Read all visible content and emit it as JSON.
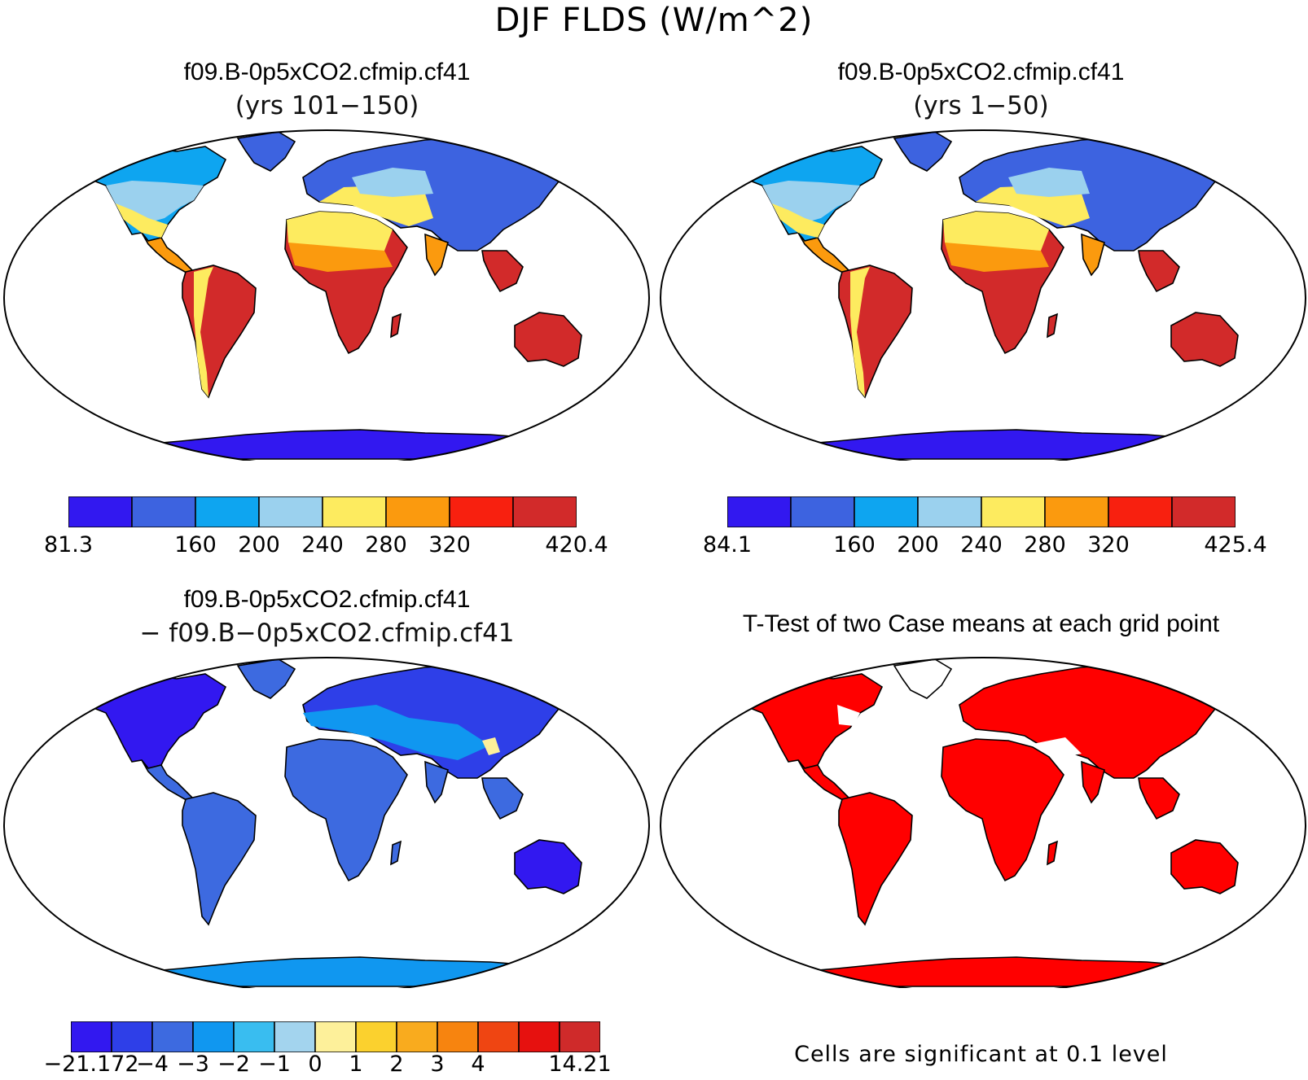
{
  "figure_title": "DJF FLDS (W/m^2)",
  "chart_data": [
    {
      "type": "heatmap",
      "title": "f09.B-0p5xCO2.cfmip.cf41",
      "subtitle": "(yrs 101−150)",
      "colorbar": {
        "colors": [
          "#3218f0",
          "#3d63e0",
          "#0ea5f0",
          "#9bd1ee",
          "#fdeb5f",
          "#fb9a0e",
          "#f8200f",
          "#d22a2a"
        ],
        "labels": [
          "81.3",
          "",
          "160",
          "200",
          "240",
          "280",
          "320",
          "",
          "420.4"
        ]
      }
    },
    {
      "type": "heatmap",
      "title": "f09.B-0p5xCO2.cfmip.cf41",
      "subtitle": "(yrs 1−50)",
      "colorbar": {
        "colors": [
          "#3218f0",
          "#3d63e0",
          "#0ea5f0",
          "#9bd1ee",
          "#fdeb5f",
          "#fb9a0e",
          "#f8200f",
          "#d22a2a"
        ],
        "labels": [
          "84.1",
          "",
          "160",
          "200",
          "240",
          "280",
          "320",
          "",
          "425.4"
        ]
      }
    },
    {
      "type": "heatmap",
      "title": "f09.B-0p5xCO2.cfmip.cf41",
      "subtitle": "− f09.B−0p5xCO2.cfmip.cf41",
      "colorbar": {
        "colors": [
          "#3218f0",
          "#2e3fe8",
          "#3d6ae0",
          "#1097f0",
          "#39bdf0",
          "#a3d4ee",
          "#fdf09a",
          "#fbd12e",
          "#f9ab1e",
          "#f7840f",
          "#ef4512",
          "#e6110f",
          "#cf2a2a"
        ],
        "labels": [
          "−21.172",
          "−4",
          "−3",
          "−2",
          "−1",
          "0",
          "1",
          "2",
          "3",
          "4",
          "",
          "14.21"
        ]
      }
    },
    {
      "type": "heatmap",
      "title": "T-Test of two Case means at each grid point",
      "note": "Cells are significant at 0.1 level",
      "colors": {
        "significant": "#ff0000"
      }
    }
  ]
}
